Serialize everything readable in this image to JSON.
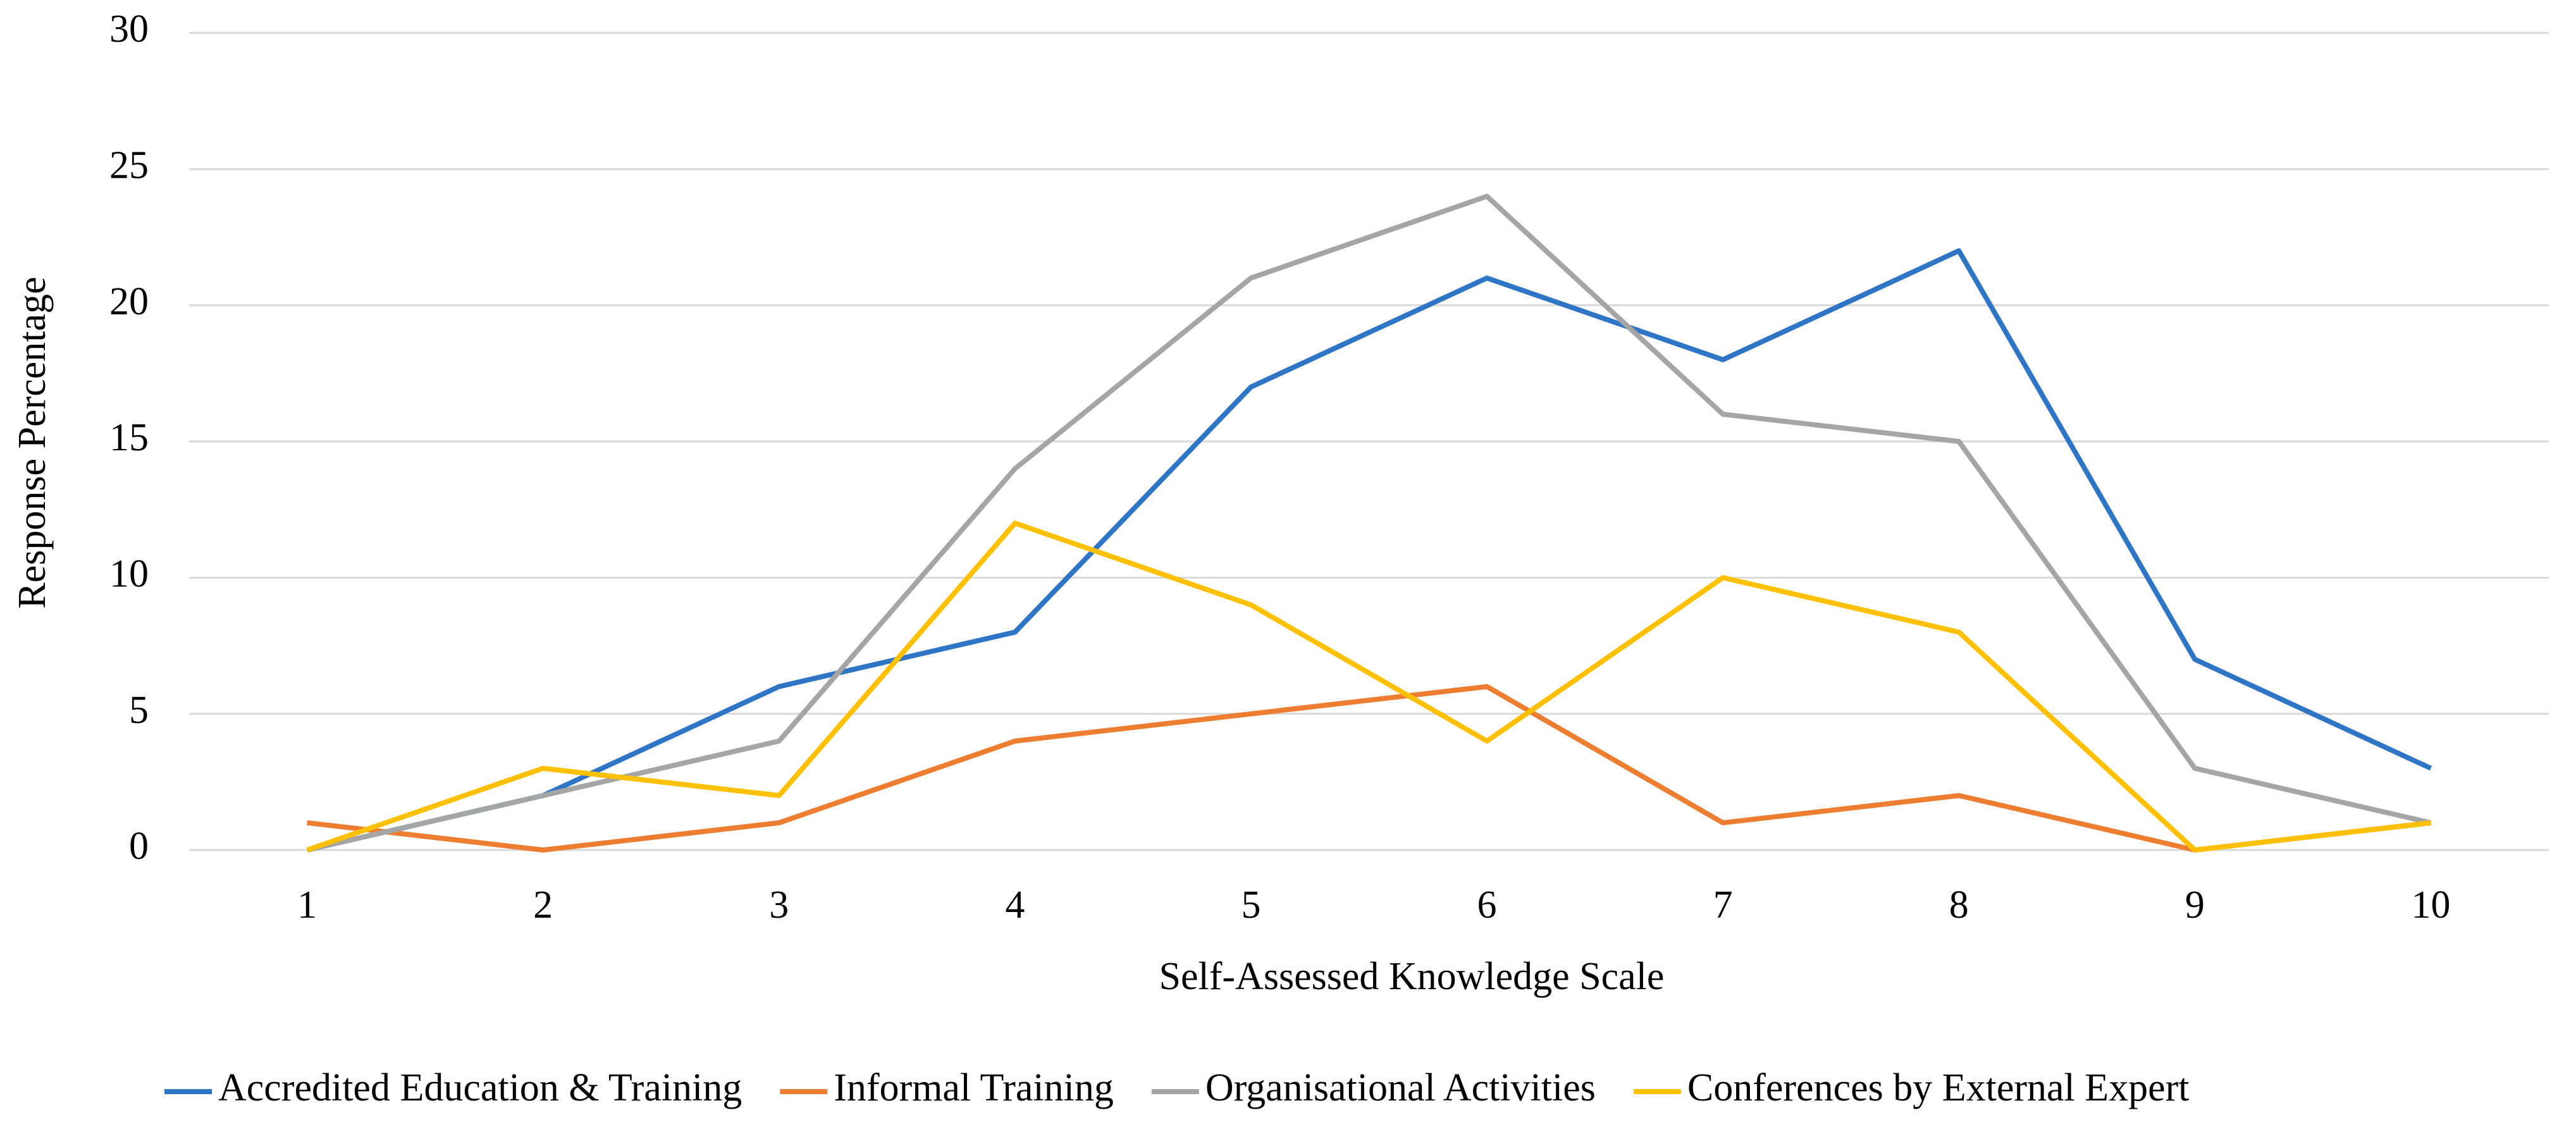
{
  "chart_data": {
    "type": "line",
    "x_label": "Self-Assessed Knowledge Scale",
    "y_label": "Response Percentage",
    "categories": [
      "1",
      "2",
      "3",
      "4",
      "5",
      "6",
      "7",
      "8",
      "9",
      "10"
    ],
    "series": [
      {
        "name": "Accredited Education & Training",
        "color": "#2e75c6",
        "values": [
          0,
          2,
          6,
          8,
          17,
          21,
          18,
          22,
          7,
          3
        ]
      },
      {
        "name": "Informal Training",
        "color": "#ed7d31",
        "values": [
          1,
          0,
          1,
          4,
          5,
          6,
          1,
          2,
          0,
          1
        ]
      },
      {
        "name": "Organisational Activities",
        "color": "#a5a5a5",
        "values": [
          0,
          2,
          4,
          14,
          21,
          24,
          16,
          15,
          3,
          1
        ]
      },
      {
        "name": "Conferences by External Expert",
        "color": "#ffc000",
        "values": [
          0,
          3,
          2,
          12,
          9,
          4,
          10,
          8,
          0,
          1
        ]
      }
    ],
    "ylim": [
      0,
      30
    ],
    "yticks": [
      0,
      5,
      10,
      15,
      20,
      25,
      30
    ],
    "grid": true,
    "legend": "bottom"
  }
}
